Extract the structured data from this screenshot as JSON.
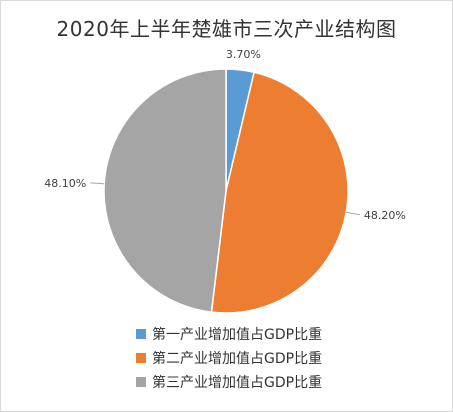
{
  "chart_data": {
    "type": "pie",
    "title": "2020年上半年楚雄市三次产业结构图",
    "slices": [
      {
        "label": "第一产业增加值占GDP比重",
        "value": 3.7,
        "display": "3.70%",
        "color": "#5b9bd5"
      },
      {
        "label": "第二产业增加值占GDP比重",
        "value": 48.2,
        "display": "48.20%",
        "color": "#ed7d31"
      },
      {
        "label": "第三产业增加值占GDP比重",
        "value": 48.1,
        "display": "48.10%",
        "color": "#a5a5a5"
      }
    ],
    "legend_position": "bottom"
  }
}
